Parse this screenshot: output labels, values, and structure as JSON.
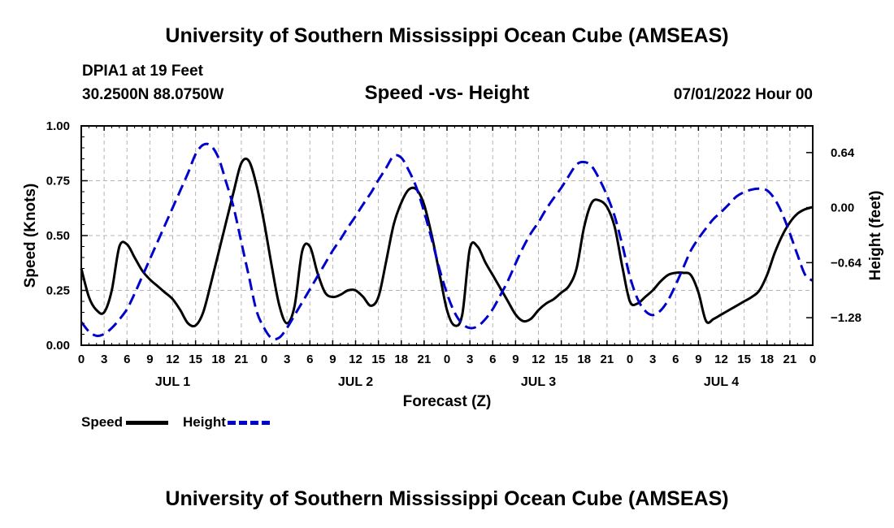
{
  "header": {
    "title": "University of Southern Mississippi Ocean Cube (AMSEAS)",
    "station": "DPIA1 at 19 Feet",
    "coords": "30.2500N  88.0750W",
    "subtitle": "Speed -vs- Height",
    "datetime": "07/01/2022 Hour 00"
  },
  "footer": {
    "title": "University of Southern Mississippi Ocean Cube (AMSEAS)"
  },
  "legend": {
    "speed_label": "Speed",
    "height_label": "Height"
  },
  "colors": {
    "speed": "#000000",
    "height": "#0000cc",
    "grid": "#b4b4b4"
  },
  "chart_data": {
    "type": "line",
    "title": "Speed -vs- Height",
    "xlabel": "Forecast (Z)",
    "ylabel": "Speed (Knots)",
    "y2label": "Height (feet)",
    "xlim": [
      0,
      96
    ],
    "ylim": [
      0,
      1
    ],
    "y2lim": [
      -1.6,
      0.95
    ],
    "x_ticks": [
      0,
      3,
      6,
      9,
      12,
      15,
      18,
      21,
      24,
      27,
      30,
      33,
      36,
      39,
      42,
      45,
      48,
      51,
      54,
      57,
      60,
      63,
      66,
      69,
      72,
      75,
      78,
      81,
      84,
      87,
      90,
      93,
      96
    ],
    "x_tick_labels": [
      "0",
      "3",
      "6",
      "9",
      "12",
      "15",
      "18",
      "21",
      "0",
      "3",
      "6",
      "9",
      "12",
      "15",
      "18",
      "21",
      "0",
      "3",
      "6",
      "9",
      "12",
      "15",
      "18",
      "21",
      "0",
      "3",
      "6",
      "9",
      "12",
      "15",
      "18",
      "21",
      "0"
    ],
    "y_ticks": [
      0,
      0.25,
      0.5,
      0.75,
      1.0
    ],
    "y_tick_labels": [
      "0.00",
      "0.25",
      "0.50",
      "0.75",
      "1.00"
    ],
    "y2_ticks": [
      0.64,
      0.0,
      -0.64,
      -1.28
    ],
    "y2_tick_labels": [
      "0.64",
      "0.00",
      "−0.64",
      "−1.28"
    ],
    "day_labels": [
      {
        "x": 12,
        "label": "JUL 1"
      },
      {
        "x": 36,
        "label": "JUL 2"
      },
      {
        "x": 60,
        "label": "JUL 3"
      },
      {
        "x": 84,
        "label": "JUL 4"
      }
    ],
    "series": [
      {
        "name": "Speed",
        "axis": "left",
        "style": "solid",
        "x": [
          0,
          1,
          2,
          3,
          4,
          5,
          6,
          7,
          8,
          9,
          10,
          11,
          12,
          13,
          14,
          15,
          16,
          17,
          18,
          19,
          20,
          21,
          22,
          23,
          24,
          25,
          26,
          27,
          28,
          29,
          30,
          31,
          32,
          33,
          34,
          35,
          36,
          37,
          38,
          39,
          40,
          41,
          42,
          43,
          44,
          45,
          46,
          47,
          48,
          49,
          50,
          51,
          52,
          53,
          54,
          55,
          56,
          57,
          58,
          59,
          60,
          61,
          62,
          63,
          64,
          65,
          66,
          67,
          68,
          69,
          70,
          71,
          72,
          73,
          74,
          75,
          76,
          77,
          78,
          79,
          80,
          81,
          82,
          83,
          84,
          85,
          86,
          87,
          88,
          89,
          90,
          91,
          92,
          93,
          94,
          95,
          96
        ],
        "values": [
          0.35,
          0.22,
          0.16,
          0.15,
          0.25,
          0.45,
          0.46,
          0.4,
          0.34,
          0.3,
          0.27,
          0.24,
          0.21,
          0.16,
          0.1,
          0.09,
          0.15,
          0.28,
          0.42,
          0.56,
          0.7,
          0.83,
          0.84,
          0.73,
          0.56,
          0.36,
          0.18,
          0.1,
          0.18,
          0.43,
          0.45,
          0.33,
          0.24,
          0.22,
          0.23,
          0.25,
          0.25,
          0.22,
          0.18,
          0.22,
          0.38,
          0.55,
          0.65,
          0.71,
          0.71,
          0.64,
          0.5,
          0.33,
          0.16,
          0.09,
          0.14,
          0.44,
          0.45,
          0.38,
          0.32,
          0.26,
          0.2,
          0.14,
          0.11,
          0.12,
          0.16,
          0.19,
          0.21,
          0.24,
          0.27,
          0.35,
          0.54,
          0.65,
          0.66,
          0.63,
          0.54,
          0.36,
          0.2,
          0.19,
          0.22,
          0.25,
          0.29,
          0.32,
          0.33,
          0.33,
          0.32,
          0.24,
          0.11,
          0.12,
          0.14,
          0.16,
          0.18,
          0.2,
          0.22,
          0.25,
          0.32,
          0.42,
          0.5,
          0.56,
          0.6,
          0.62,
          0.63
        ]
      },
      {
        "name": "Height",
        "axis": "right",
        "style": "dashed",
        "x": [
          0,
          1,
          2,
          3,
          4,
          5,
          6,
          7,
          8,
          9,
          10,
          11,
          12,
          13,
          14,
          15,
          16,
          17,
          18,
          19,
          20,
          21,
          22,
          23,
          24,
          25,
          26,
          27,
          28,
          29,
          30,
          31,
          32,
          33,
          34,
          35,
          36,
          37,
          38,
          39,
          40,
          41,
          42,
          43,
          44,
          45,
          46,
          47,
          48,
          49,
          50,
          51,
          52,
          53,
          54,
          55,
          56,
          57,
          58,
          59,
          60,
          61,
          62,
          63,
          64,
          65,
          66,
          67,
          68,
          69,
          70,
          71,
          72,
          73,
          74,
          75,
          76,
          77,
          78,
          79,
          80,
          81,
          82,
          83,
          84,
          85,
          86,
          87,
          88,
          89,
          90,
          91,
          92,
          93,
          94,
          95,
          96
        ],
        "values": [
          -1.33,
          -1.44,
          -1.49,
          -1.47,
          -1.4,
          -1.3,
          -1.18,
          -1.0,
          -0.8,
          -0.6,
          -0.4,
          -0.2,
          0.0,
          0.2,
          0.4,
          0.62,
          0.73,
          0.72,
          0.58,
          0.3,
          0.0,
          -0.4,
          -0.8,
          -1.2,
          -1.4,
          -1.52,
          -1.51,
          -1.4,
          -1.25,
          -1.1,
          -0.95,
          -0.8,
          -0.65,
          -0.5,
          -0.37,
          -0.23,
          -0.1,
          0.04,
          0.17,
          0.32,
          0.46,
          0.6,
          0.58,
          0.43,
          0.23,
          -0.05,
          -0.37,
          -0.71,
          -1.0,
          -1.22,
          -1.35,
          -1.4,
          -1.38,
          -1.3,
          -1.18,
          -1.02,
          -0.85,
          -0.65,
          -0.46,
          -0.3,
          -0.17,
          -0.02,
          0.11,
          0.23,
          0.37,
          0.5,
          0.53,
          0.48,
          0.33,
          0.14,
          -0.1,
          -0.43,
          -0.8,
          -1.06,
          -1.2,
          -1.25,
          -1.2,
          -1.08,
          -0.9,
          -0.7,
          -0.5,
          -0.36,
          -0.24,
          -0.13,
          -0.05,
          0.04,
          0.13,
          0.18,
          0.21,
          0.22,
          0.2,
          0.1,
          -0.07,
          -0.3,
          -0.55,
          -0.78,
          -0.85
        ]
      }
    ]
  }
}
